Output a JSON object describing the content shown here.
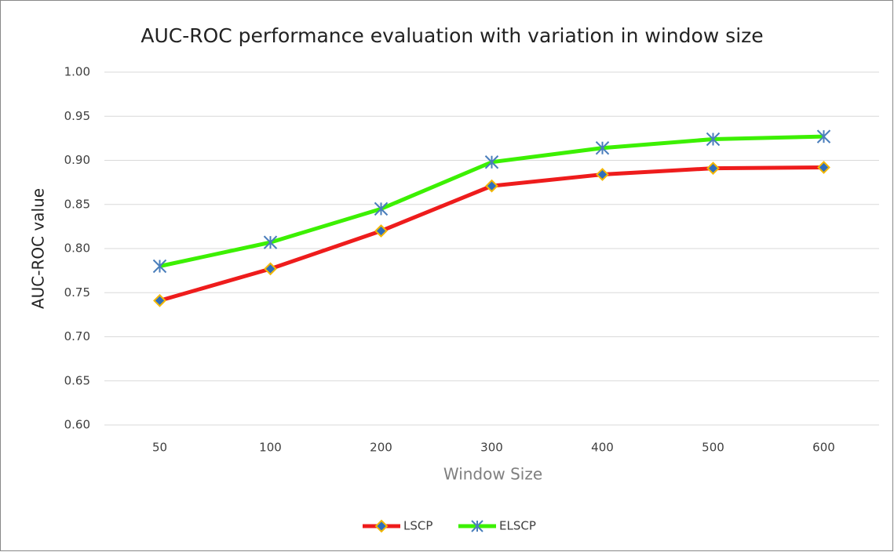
{
  "chart_data": {
    "type": "line",
    "title": "AUC-ROC performance evaluation with variation in window size",
    "x_label": "Window Size",
    "y_label": "AUC-ROC value",
    "categories": [
      "50",
      "100",
      "200",
      "300",
      "400",
      "500",
      "600"
    ],
    "series": [
      {
        "name": "LSCP",
        "color": "#ee1c1c",
        "marker": "diamond",
        "values": [
          0.741,
          0.777,
          0.82,
          0.871,
          0.884,
          0.891,
          0.892
        ]
      },
      {
        "name": "ELSCP",
        "color": "#3cf000",
        "marker": "asterisk",
        "values": [
          0.78,
          0.807,
          0.845,
          0.898,
          0.914,
          0.924,
          0.927
        ]
      }
    ],
    "ylim": [
      0.6,
      1.0
    ],
    "yticks": [
      {
        "value": 0.6,
        "label": "0.60"
      },
      {
        "value": 0.65,
        "label": "0.65"
      },
      {
        "value": 0.7,
        "label": "0.70"
      },
      {
        "value": 0.75,
        "label": "0.75"
      },
      {
        "value": 0.8,
        "label": "0.80"
      },
      {
        "value": 0.85,
        "label": "0.85"
      },
      {
        "value": 0.9,
        "label": "0.90"
      },
      {
        "value": 0.95,
        "label": "0.95"
      },
      {
        "value": 1.0,
        "label": "1.00"
      }
    ],
    "grid": true,
    "legend": "bottom"
  }
}
